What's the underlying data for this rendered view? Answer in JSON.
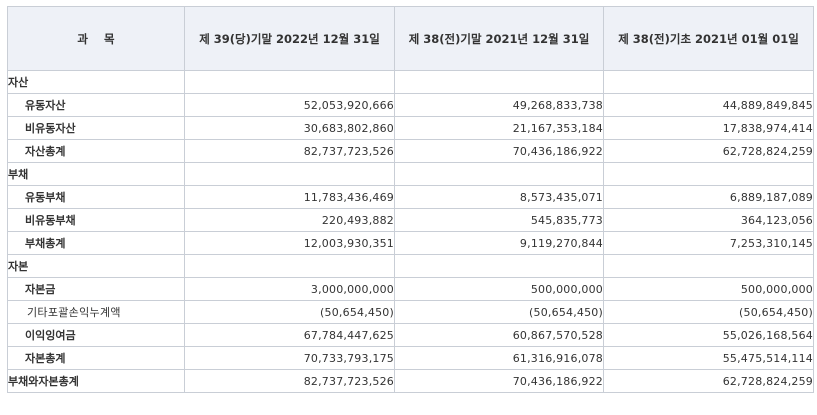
{
  "header": {
    "subject": "과    목",
    "period1": "제 39(당)기말 2022년 12월 31일",
    "period2": "제 38(전)기말 2021년 12월 31일",
    "period3": "제 38(전)기초 2021년 01월 01일"
  },
  "rows": [
    {
      "kind": "section",
      "label": "자산",
      "v1": "",
      "v2": "",
      "v3": ""
    },
    {
      "kind": "item",
      "label": "유동자산",
      "v1": "52,053,920,666",
      "v2": "49,268,833,738",
      "v3": "44,889,849,845"
    },
    {
      "kind": "item",
      "label": "비유동자산",
      "v1": "30,683,802,860",
      "v2": "21,167,353,184",
      "v3": "17,838,974,414"
    },
    {
      "kind": "item",
      "label": "자산총계",
      "v1": "82,737,723,526",
      "v2": "70,436,186,922",
      "v3": "62,728,824,259"
    },
    {
      "kind": "section",
      "label": "부채",
      "v1": "",
      "v2": "",
      "v3": ""
    },
    {
      "kind": "item",
      "label": "유동부채",
      "v1": "11,783,436,469",
      "v2": "8,573,435,071",
      "v3": "6,889,187,089"
    },
    {
      "kind": "item",
      "label": "비유동부채",
      "v1": "220,493,882",
      "v2": "545,835,773",
      "v3": "364,123,056"
    },
    {
      "kind": "item",
      "label": "부채총계",
      "v1": "12,003,930,351",
      "v2": "9,119,270,844",
      "v3": "7,253,310,145"
    },
    {
      "kind": "section",
      "label": "자본",
      "v1": "",
      "v2": "",
      "v3": ""
    },
    {
      "kind": "item",
      "label": "자본금",
      "v1": "3,000,000,000",
      "v2": "500,000,000",
      "v3": "500,000,000"
    },
    {
      "kind": "note",
      "label": "기타포괄손익누계액",
      "v1": "(50,654,450)",
      "v2": "(50,654,450)",
      "v3": "(50,654,450)"
    },
    {
      "kind": "item",
      "label": "이익잉여금",
      "v1": "67,784,447,625",
      "v2": "60,867,570,528",
      "v3": "55,026,168,564"
    },
    {
      "kind": "item",
      "label": "자본총계",
      "v1": "70,733,793,175",
      "v2": "61,316,916,078",
      "v3": "55,475,514,114"
    },
    {
      "kind": "section",
      "label": "부채와자본총계",
      "v1": "82,737,723,526",
      "v2": "70,436,186,922",
      "v3": "62,728,824,259"
    }
  ]
}
